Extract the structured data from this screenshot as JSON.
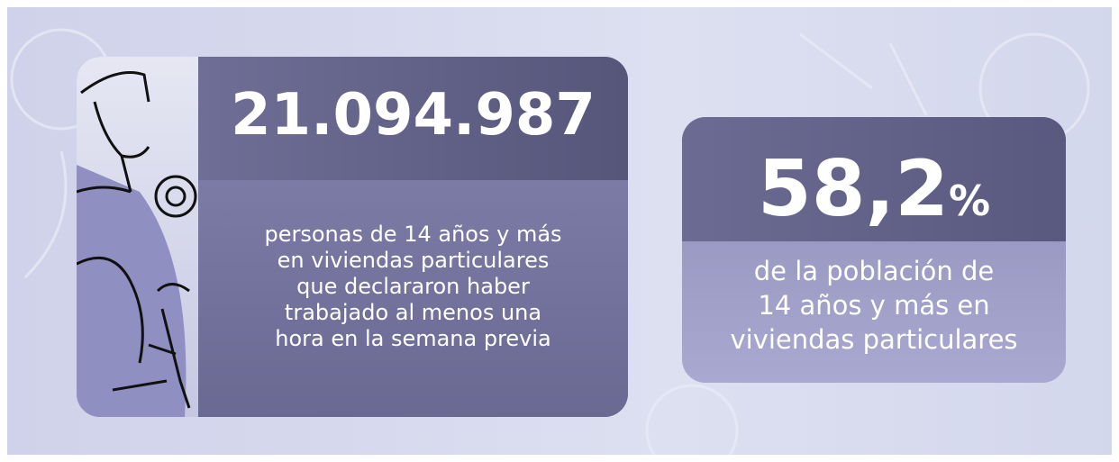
{
  "left_card": {
    "number": "21.094.987",
    "description_lines": [
      "personas de 14 años y más",
      "en viviendas particulares",
      "que declararon haber",
      "trabajado al menos una",
      "hora en la semana previa"
    ]
  },
  "right_card": {
    "number": "58,2",
    "unit": "%",
    "description_lines": [
      "de la población de",
      "14 años y más en",
      "viviendas particulares"
    ]
  }
}
